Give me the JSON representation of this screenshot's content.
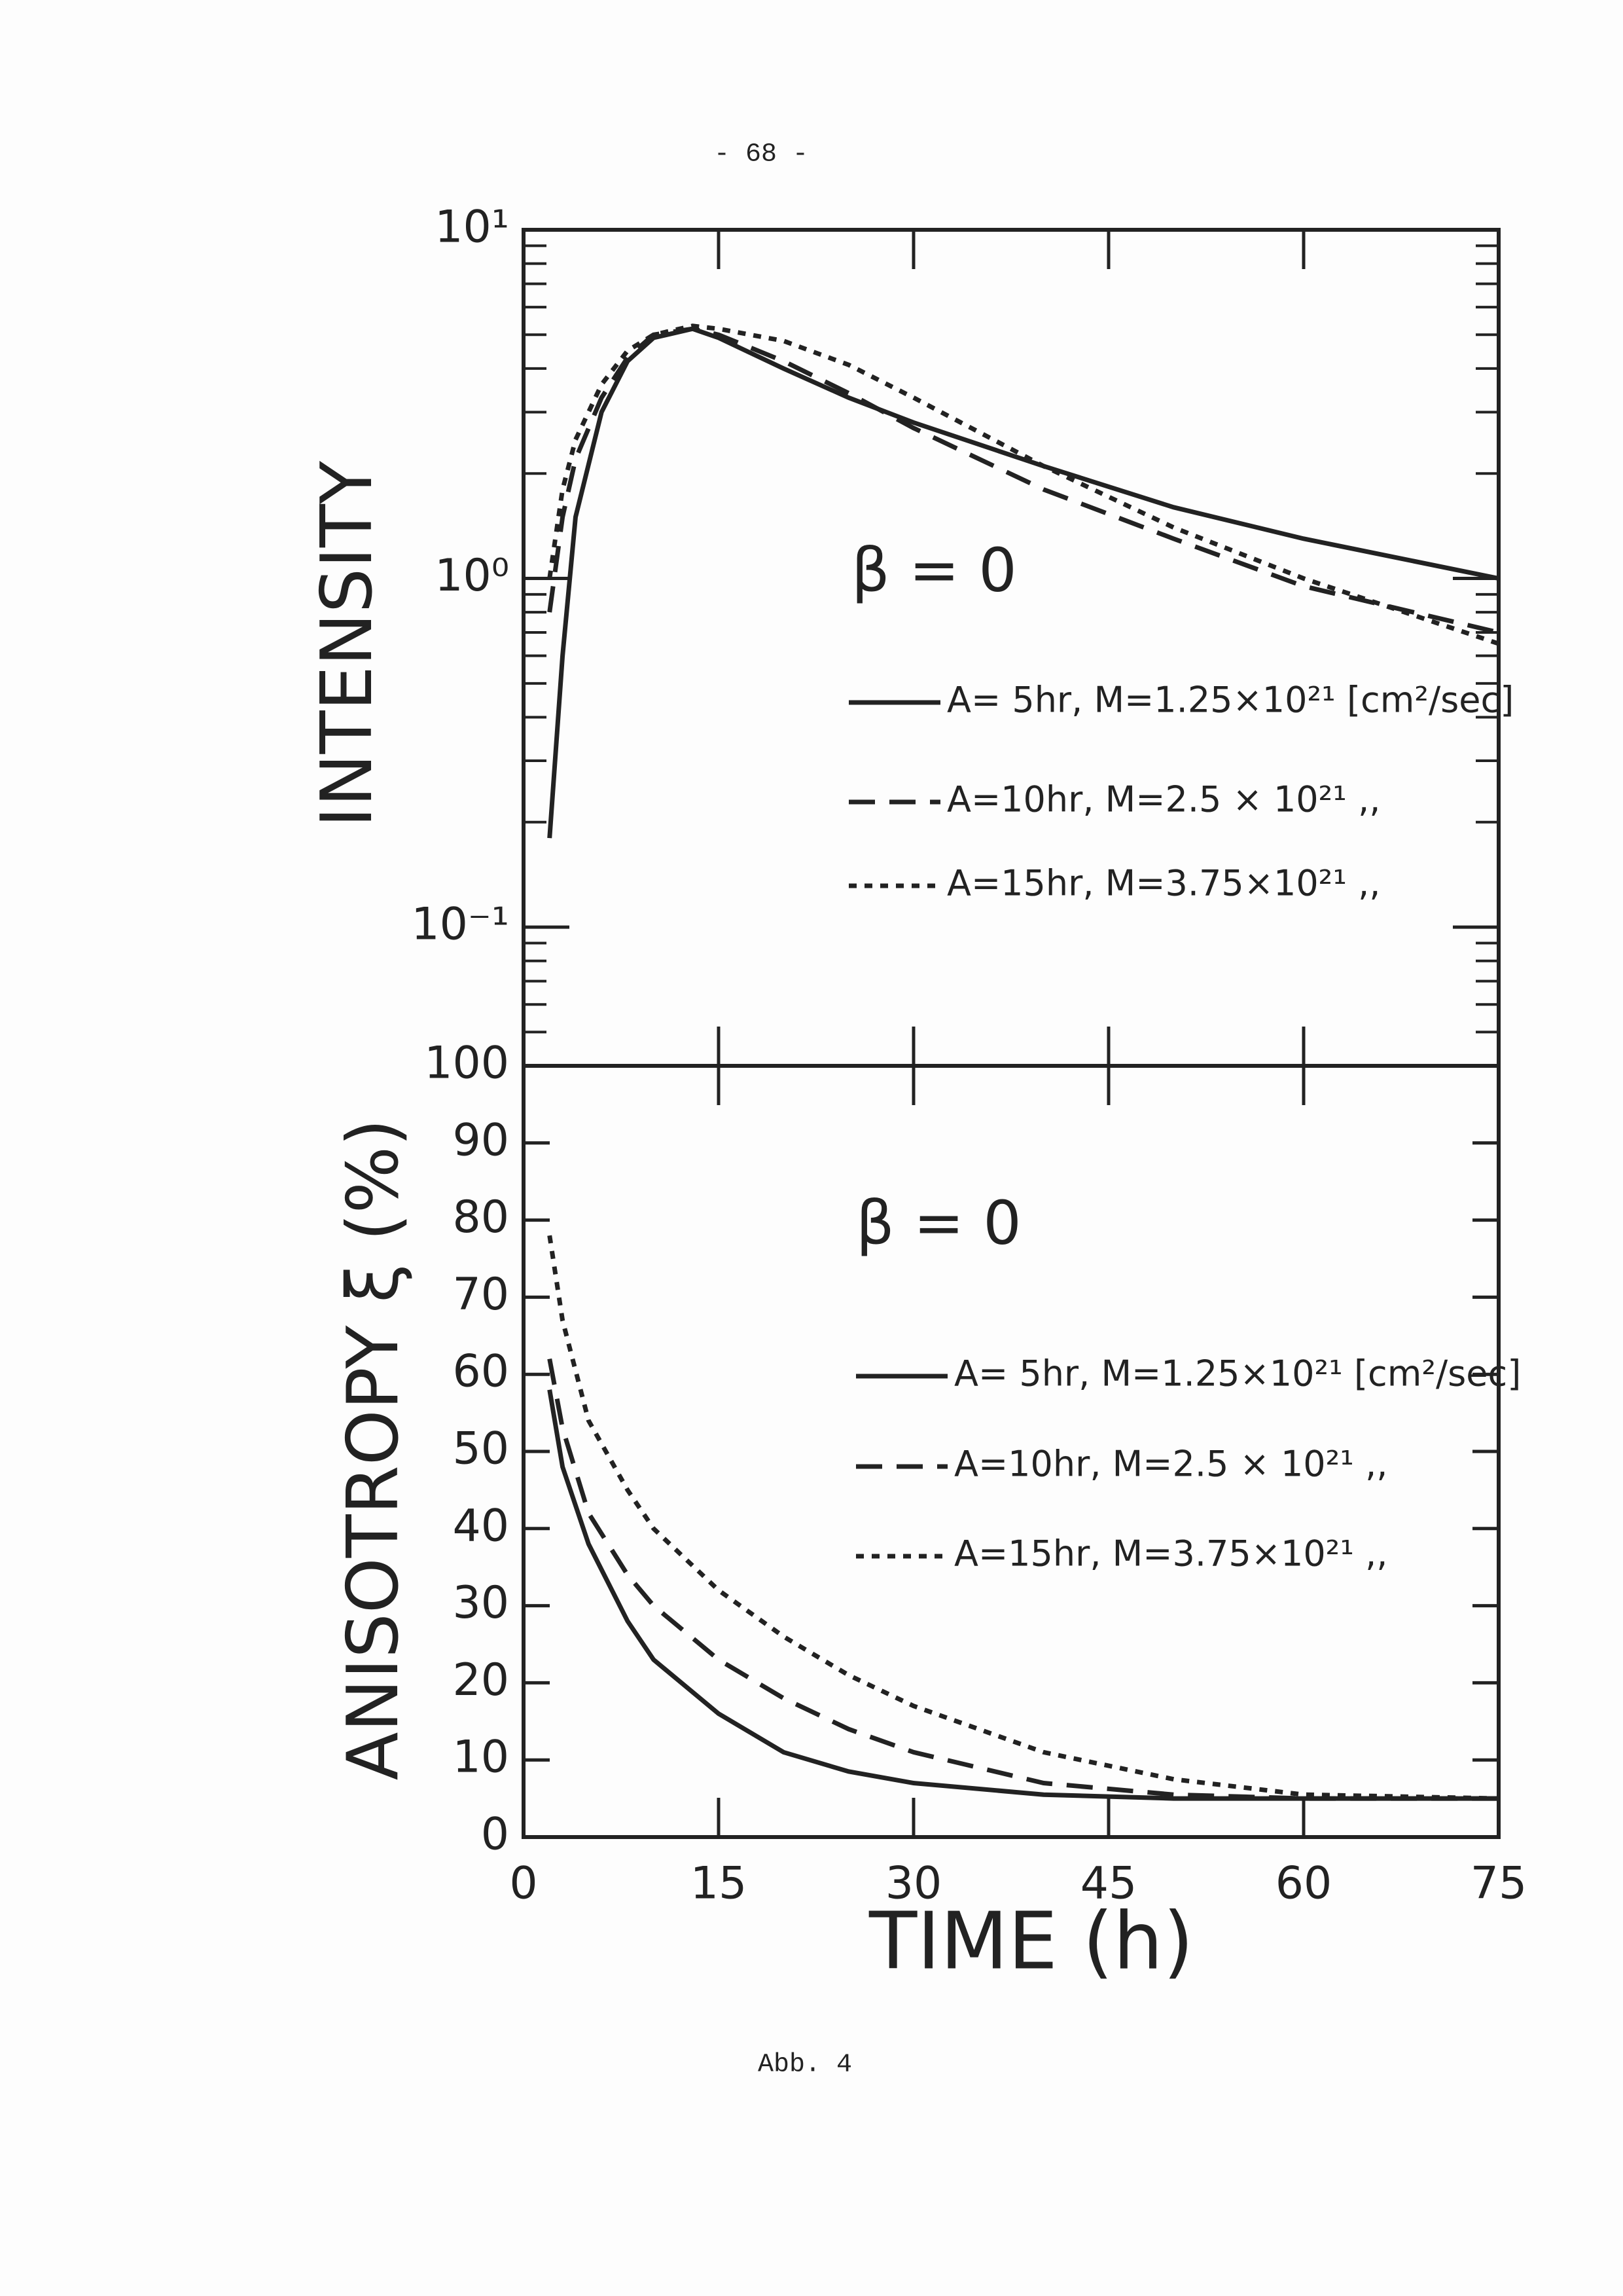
{
  "page_number": "- 68 -",
  "caption": "Abb. 4",
  "chart_data": [
    {
      "type": "line",
      "ylabel": "INTENSITY",
      "annotation": "β = 0",
      "log_y": true,
      "xlim": [
        0,
        75
      ],
      "ylim": [
        0.04,
        10
      ],
      "yticks": [
        {
          "value": 10,
          "label": "10¹"
        },
        {
          "value": 1,
          "label": "10⁰"
        },
        {
          "value": 0.1,
          "label": "10⁻¹"
        }
      ],
      "x": [
        2,
        3,
        4,
        6,
        8,
        10,
        13,
        15,
        20,
        25,
        30,
        40,
        50,
        60,
        75
      ],
      "series": [
        {
          "name": "A= 5hr, M=1.25×10²¹ [cm²/sec]",
          "color": "#222222",
          "style": "solid",
          "values": [
            0.18,
            0.6,
            1.5,
            3.0,
            4.2,
            4.9,
            5.2,
            4.9,
            4.0,
            3.3,
            2.8,
            2.1,
            1.6,
            1.3,
            1.0
          ]
        },
        {
          "name": "A=10hr, M=2.5 × 10²¹ ,,",
          "color": "#222222",
          "style": "dashed",
          "values": [
            0.8,
            1.5,
            2.2,
            3.3,
            4.3,
            5.0,
            5.2,
            5.0,
            4.2,
            3.4,
            2.7,
            1.8,
            1.3,
            0.95,
            0.7
          ]
        },
        {
          "name": "A=15hr, M=3.75×10²¹ ,,",
          "color": "#222222",
          "style": "dotted",
          "values": [
            1.0,
            1.8,
            2.5,
            3.6,
            4.5,
            5.0,
            5.3,
            5.2,
            4.8,
            4.1,
            3.3,
            2.1,
            1.4,
            1.0,
            0.65
          ]
        }
      ]
    },
    {
      "type": "line",
      "ylabel": "ANISOTROPY ξ (%)",
      "xlabel": "TIME (h)",
      "annotation": "β = 0",
      "xlim": [
        0,
        75
      ],
      "ylim": [
        0,
        100
      ],
      "xticks": [
        0,
        15,
        30,
        45,
        60,
        75
      ],
      "yticks": [
        0,
        10,
        20,
        30,
        40,
        50,
        60,
        70,
        80,
        90,
        100
      ],
      "x": [
        2,
        3,
        5,
        8,
        10,
        15,
        20,
        25,
        30,
        40,
        50,
        60,
        75
      ],
      "series": [
        {
          "name": "A= 5hr, M=1.25×10²¹ [cm²/sec]",
          "color": "#222222",
          "style": "solid",
          "values": [
            58,
            48,
            38,
            28,
            23,
            16,
            11,
            8.5,
            7,
            5.5,
            5,
            5,
            5
          ]
        },
        {
          "name": "A=10hr, M=2.5 × 10²¹ ,,",
          "color": "#222222",
          "style": "dashed",
          "values": [
            62,
            53,
            42,
            34,
            30,
            23,
            18,
            14,
            11,
            7,
            5.5,
            5,
            5
          ]
        },
        {
          "name": "A=15hr, M=3.75×10²¹ ,,",
          "color": "#222222",
          "style": "dotted",
          "values": [
            78,
            67,
            54,
            45,
            40,
            32,
            26,
            21,
            17,
            11,
            7.5,
            5.5,
            5
          ]
        }
      ]
    }
  ]
}
